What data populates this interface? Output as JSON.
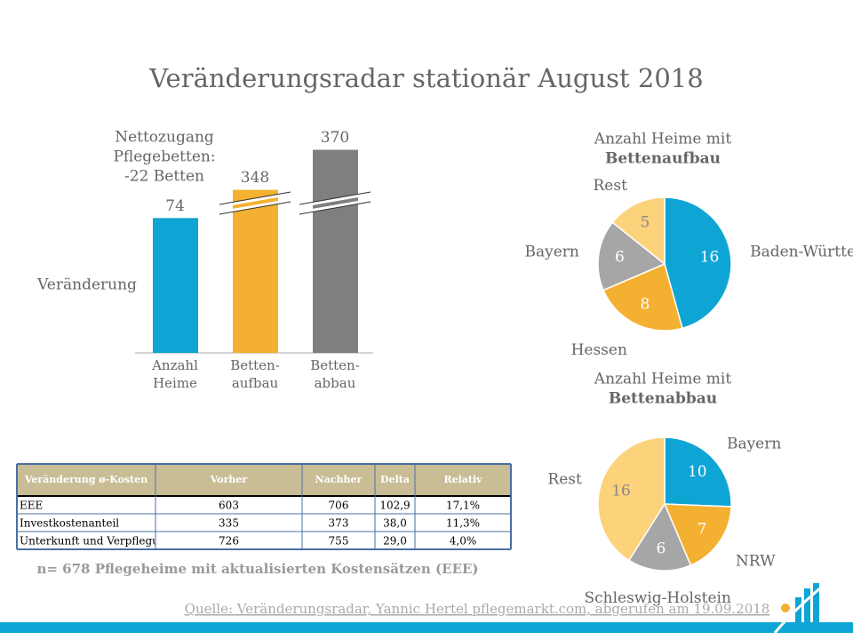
{
  "title": "Veränderungsradar stationär August 2018",
  "chart_data": [
    {
      "type": "bar",
      "annotation": [
        "Nettozugang",
        "Pflegebetten:",
        "-22 Betten"
      ],
      "ylabel": "Veränderung",
      "categories": [
        "Anzahl Heime",
        "Betten-aufbau",
        "Betten-abbau"
      ],
      "values": [
        74,
        348,
        370
      ],
      "colors": [
        "#0ea5d4",
        "#f4b030",
        "#7f7f7f"
      ]
    },
    {
      "type": "pie",
      "title": [
        "Anzahl Heime mit",
        "Bettenaufbau"
      ],
      "categories": [
        "Baden-Württemberg",
        "Hessen",
        "Bayern",
        "Rest"
      ],
      "values": [
        16,
        8,
        6,
        5
      ],
      "colors": [
        "#0ea5d4",
        "#f4b030",
        "#a6a6a6",
        "#fcd27a"
      ]
    },
    {
      "type": "pie",
      "title": [
        "Anzahl Heime mit",
        "Bettenabbau"
      ],
      "categories": [
        "Bayern",
        "NRW",
        "Schleswig-Holstein",
        "Rest"
      ],
      "values": [
        10,
        7,
        6,
        16
      ],
      "colors": [
        "#0ea5d4",
        "#f4b030",
        "#a6a6a6",
        "#fcd27a"
      ]
    }
  ],
  "table": {
    "columns": [
      "Veränderung ø-Kosten",
      "Vorher",
      "Nachher",
      "Delta",
      "Relativ"
    ],
    "rows": [
      [
        "EEE",
        "603",
        "706",
        "102,9",
        "17,1%"
      ],
      [
        "Investkostenanteil",
        "335",
        "373",
        "38,0",
        "11,3%"
      ],
      [
        "Unterkunft und Verpflegung",
        "726",
        "755",
        "29,0",
        "4,0%"
      ]
    ]
  },
  "note": "n= 678 Pflegeheime mit aktualisierten Kostensätzen (EEE)",
  "source": "Quelle: Veränderungsradar, Yannic Hertel pflegemarkt.com, abgerufen am 19.09.2018"
}
